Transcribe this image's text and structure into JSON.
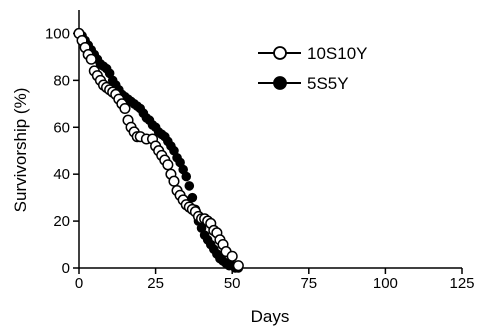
{
  "chart_data": {
    "type": "scatter",
    "title": "",
    "xlabel": "Days",
    "ylabel": "Survivorship (%)",
    "xlim": [
      0,
      125
    ],
    "ylim": [
      0,
      110
    ],
    "xticks": [
      0,
      25,
      50,
      75,
      100,
      125
    ],
    "yticks": [
      0,
      20,
      40,
      60,
      80,
      100
    ],
    "grid": false,
    "legend": "top-right",
    "series": [
      {
        "name": "10S10Y",
        "marker": "open-circle",
        "color": "#000000",
        "x": [
          0,
          1,
          2,
          3,
          4,
          5,
          6,
          7,
          8,
          9,
          10,
          11,
          12,
          13,
          14,
          15,
          16,
          17,
          18,
          19,
          20,
          22,
          24,
          25,
          26,
          27,
          28,
          29,
          30,
          31,
          32,
          33,
          34,
          35,
          36,
          37,
          38,
          39,
          40,
          41,
          42,
          43,
          44,
          45,
          46,
          47,
          48,
          50,
          52
        ],
        "y": [
          100,
          97,
          94,
          91,
          89,
          84,
          82,
          80,
          78,
          77,
          76,
          75,
          74,
          72,
          70,
          68,
          63,
          60,
          58,
          56,
          56,
          55,
          55,
          52,
          50,
          48,
          46,
          44,
          40,
          37,
          33,
          31,
          29,
          27,
          26,
          25,
          24,
          22,
          21,
          21,
          20,
          19,
          16,
          15,
          12,
          10,
          7,
          5,
          1
        ]
      },
      {
        "name": "5S5Y",
        "marker": "filled-circle",
        "color": "#000000",
        "x": [
          0,
          1,
          2,
          3,
          4,
          5,
          6,
          7,
          8,
          9,
          10,
          11,
          12,
          13,
          14,
          15,
          16,
          17,
          18,
          19,
          20,
          21,
          22,
          23,
          24,
          25,
          26,
          27,
          28,
          29,
          30,
          31,
          32,
          33,
          34,
          35,
          36,
          37,
          38,
          39,
          40,
          41,
          42,
          43,
          44,
          45,
          46,
          47,
          48,
          49,
          50,
          51,
          52
        ],
        "y": [
          100,
          99,
          97,
          95,
          93,
          91,
          89,
          87,
          86,
          85,
          83,
          80,
          78,
          76,
          74,
          73,
          72,
          71,
          70,
          69,
          68,
          66,
          64,
          63,
          61,
          60,
          58,
          57,
          56,
          54,
          52,
          50,
          47,
          45,
          42,
          39,
          35,
          30,
          25,
          20,
          17,
          14,
          12,
          10,
          8,
          6,
          4,
          3,
          2,
          1,
          1,
          0,
          0
        ]
      }
    ]
  }
}
